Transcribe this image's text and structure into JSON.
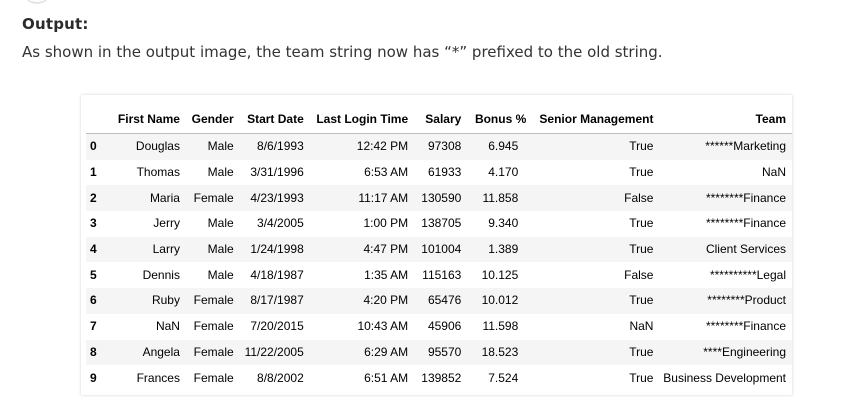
{
  "heading": "Output:",
  "description": "As shown in the output image, the team string now has “*” prefixed to the old string.",
  "table": {
    "columns": [
      "",
      "First Name",
      "Gender",
      "Start Date",
      "Last Login Time",
      "Salary",
      "Bonus %",
      "Senior Management",
      "Team"
    ],
    "rows": [
      [
        "0",
        "Douglas",
        "Male",
        "8/6/1993",
        "12:42 PM",
        "97308",
        "6.945",
        "True",
        "******Marketing"
      ],
      [
        "1",
        "Thomas",
        "Male",
        "3/31/1996",
        "6:53 AM",
        "61933",
        "4.170",
        "True",
        "NaN"
      ],
      [
        "2",
        "Maria",
        "Female",
        "4/23/1993",
        "11:17 AM",
        "130590",
        "11.858",
        "False",
        "********Finance"
      ],
      [
        "3",
        "Jerry",
        "Male",
        "3/4/2005",
        "1:00 PM",
        "138705",
        "9.340",
        "True",
        "********Finance"
      ],
      [
        "4",
        "Larry",
        "Male",
        "1/24/1998",
        "4:47 PM",
        "101004",
        "1.389",
        "True",
        "Client Services"
      ],
      [
        "5",
        "Dennis",
        "Male",
        "4/18/1987",
        "1:35 AM",
        "115163",
        "10.125",
        "False",
        "**********Legal"
      ],
      [
        "6",
        "Ruby",
        "Female",
        "8/17/1987",
        "4:20 PM",
        "65476",
        "10.012",
        "True",
        "********Product"
      ],
      [
        "7",
        "NaN",
        "Female",
        "7/20/2015",
        "10:43 AM",
        "45906",
        "11.598",
        "NaN",
        "********Finance"
      ],
      [
        "8",
        "Angela",
        "Female",
        "11/22/2005",
        "6:29 AM",
        "95570",
        "18.523",
        "True",
        "****Engineering"
      ],
      [
        "9",
        "Frances",
        "Female",
        "8/8/2002",
        "6:51 AM",
        "139852",
        "7.524",
        "True",
        "Business Development"
      ]
    ]
  }
}
